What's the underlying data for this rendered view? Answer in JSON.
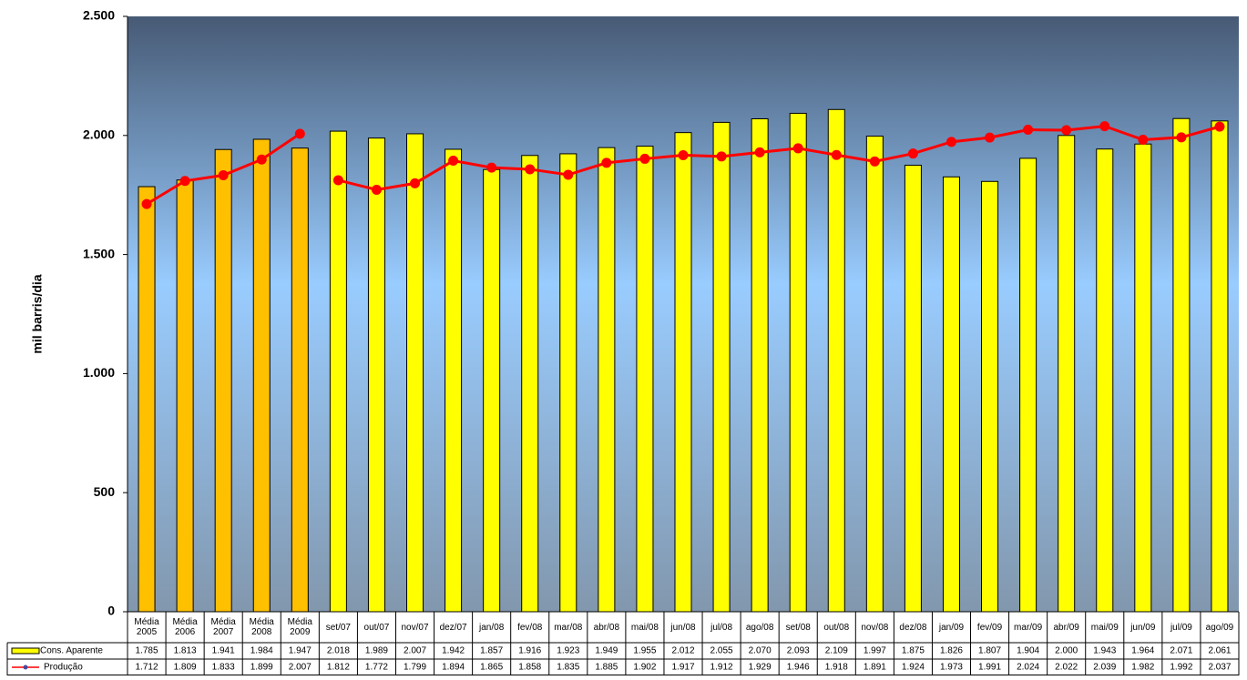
{
  "chart_data": {
    "type": "bar_line",
    "y_label": "mil barris/dia",
    "categories": [
      "Média 2005",
      "Média 2006",
      "Média 2007",
      "Média 2008",
      "Média 2009",
      "set/07",
      "out/07",
      "nov/07",
      "dez/07",
      "jan/08",
      "fev/08",
      "mar/08",
      "abr/08",
      "mai/08",
      "jun/08",
      "jul/08",
      "ago/08",
      "set/08",
      "out/08",
      "nov/08",
      "dez/08",
      "jan/09",
      "fev/09",
      "mar/09",
      "abr/09",
      "mai/09",
      "jun/09",
      "jul/09",
      "ago/09"
    ],
    "series": [
      {
        "name": "Cons. Aparente",
        "kind": "bar",
        "color": "#ffff00",
        "group_color": "#ffc000",
        "group_size": 5,
        "values": [
          1785,
          1813,
          1941,
          1984,
          1947,
          2018,
          1989,
          2007,
          1942,
          1857,
          1916,
          1923,
          1949,
          1955,
          2012,
          2055,
          2070,
          2093,
          2109,
          1997,
          1875,
          1826,
          1807,
          1904,
          2000,
          1943,
          1964,
          2071,
          2061
        ],
        "value_labels": [
          "1.785",
          "1.813",
          "1.941",
          "1.984",
          "1.947",
          "2.018",
          "1.989",
          "2.007",
          "1.942",
          "1.857",
          "1.916",
          "1.923",
          "1.949",
          "1.955",
          "2.012",
          "2.055",
          "2.070",
          "2.093",
          "2.109",
          "1.997",
          "1.875",
          "1.826",
          "1.807",
          "1.904",
          "2.000",
          "1.943",
          "1.964",
          "2.071",
          "2.061"
        ]
      },
      {
        "name": "Produção",
        "kind": "line",
        "color": "#ff0000",
        "values": [
          1712,
          1809,
          1833,
          1899,
          2007,
          1812,
          1772,
          1799,
          1894,
          1865,
          1858,
          1835,
          1885,
          1902,
          1917,
          1912,
          1929,
          1946,
          1918,
          1891,
          1924,
          1973,
          1991,
          2024,
          2022,
          2039,
          1982,
          1992,
          2037
        ],
        "value_labels": [
          "1.712",
          "1.809",
          "1.833",
          "1.899",
          "2.007",
          "1.812",
          "1.772",
          "1.799",
          "1.894",
          "1.865",
          "1.858",
          "1.835",
          "1.885",
          "1.902",
          "1.917",
          "1.912",
          "1.929",
          "1.946",
          "1.918",
          "1.891",
          "1.924",
          "1.973",
          "1.991",
          "2.024",
          "2.022",
          "2.039",
          "1.982",
          "1.992",
          "2.037"
        ]
      }
    ],
    "ylim": [
      0,
      2500
    ],
    "yticks": [
      0,
      500,
      {
        "value": 1000,
        "label": "1.000"
      },
      {
        "value": 1500,
        "label": "1.500"
      },
      {
        "value": 2000,
        "label": "2.000"
      },
      {
        "value": 2500,
        "label": "2.500"
      }
    ]
  }
}
